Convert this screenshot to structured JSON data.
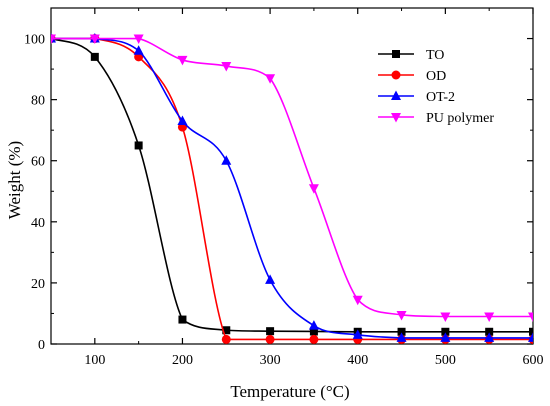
{
  "chart_data": {
    "type": "line",
    "xlabel": "Temperature (°C)",
    "ylabel": "Weight (%)",
    "xlim": [
      50,
      600
    ],
    "ylim": [
      0,
      110
    ],
    "xticks": [
      100,
      200,
      300,
      400,
      500,
      600
    ],
    "yticks": [
      0,
      20,
      40,
      60,
      80,
      100
    ],
    "grid": false,
    "legend_position": "top-right",
    "series": [
      {
        "name": "TO",
        "color": "#000000",
        "marker": "square",
        "x": [
          50,
          100,
          150,
          200,
          250,
          300,
          350,
          400,
          450,
          500,
          550,
          600
        ],
        "y": [
          100,
          94,
          65,
          8,
          4.5,
          4.2,
          4.1,
          4.0,
          4.0,
          4.0,
          4.0,
          4.0
        ]
      },
      {
        "name": "OD",
        "color": "#ff0000",
        "marker": "circle",
        "x": [
          50,
          100,
          150,
          200,
          250,
          300,
          350,
          400,
          450,
          500,
          550,
          600
        ],
        "y": [
          100,
          100,
          94,
          71,
          1.5,
          1.5,
          1.5,
          1.5,
          1.5,
          1.5,
          1.5,
          1.5
        ]
      },
      {
        "name": "OT-2",
        "color": "#0000ff",
        "marker": "triangle-up",
        "x": [
          50,
          100,
          150,
          200,
          250,
          300,
          350,
          400,
          450,
          500,
          550,
          600
        ],
        "y": [
          100,
          100,
          96,
          73,
          60,
          21,
          6,
          3,
          2,
          2,
          2,
          2
        ]
      },
      {
        "name": "PU polymer",
        "color": "#ff00ff",
        "marker": "triangle-down",
        "x": [
          50,
          100,
          150,
          200,
          250,
          300,
          350,
          400,
          450,
          500,
          550,
          600
        ],
        "y": [
          100,
          100,
          100,
          93,
          91,
          87,
          51,
          14.5,
          9.5,
          9,
          9,
          9
        ]
      }
    ]
  }
}
